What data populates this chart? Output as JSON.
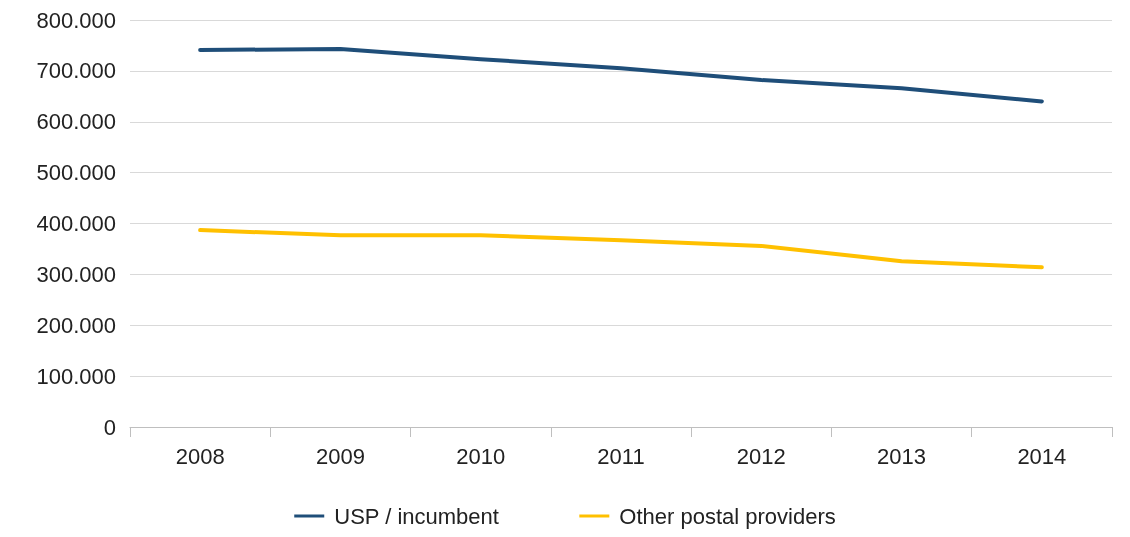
{
  "chart_data": {
    "type": "line",
    "categories": [
      "2008",
      "2009",
      "2010",
      "2011",
      "2012",
      "2013",
      "2014"
    ],
    "series": [
      {
        "name": "USP / incumbent",
        "color": "#1f4e79",
        "values": [
          741000,
          743000,
          723000,
          705000,
          682000,
          666000,
          640000
        ]
      },
      {
        "name": "Other postal providers",
        "color": "#ffc000",
        "values": [
          387000,
          377000,
          377000,
          367000,
          356000,
          326000,
          314000
        ]
      }
    ],
    "ylim": [
      0,
      800000
    ],
    "yticks": [
      {
        "value": 0,
        "label": "0"
      },
      {
        "value": 100000,
        "label": "100.000"
      },
      {
        "value": 200000,
        "label": "200.000"
      },
      {
        "value": 300000,
        "label": "300.000"
      },
      {
        "value": 400000,
        "label": "400.000"
      },
      {
        "value": 500000,
        "label": "500.000"
      },
      {
        "value": 600000,
        "label": "600.000"
      },
      {
        "value": 700000,
        "label": "700.000"
      },
      {
        "value": 800000,
        "label": "800.000"
      }
    ],
    "grid": "y",
    "legend": "bottom",
    "marker": "none",
    "line_style": "solid"
  }
}
